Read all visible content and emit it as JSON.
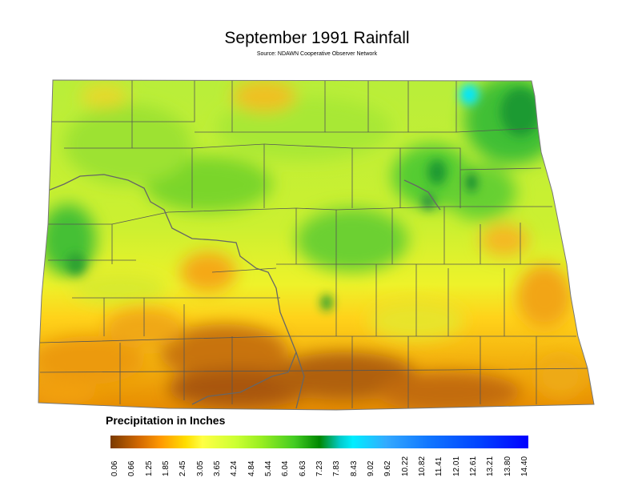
{
  "title": "September 1991 Rainfall",
  "subtitle": "Source: NDAWN Cooperative Observer Network",
  "legend": {
    "title": "Precipitation in Inches",
    "ticks": [
      "0.06",
      "0.66",
      "1.25",
      "1.85",
      "2.45",
      "3.05",
      "3.65",
      "4.24",
      "4.84",
      "5.44",
      "6.04",
      "6.63",
      "7.23",
      "7.83",
      "8.43",
      "9.02",
      "9.62",
      "10.22",
      "10.82",
      "11.41",
      "12.01",
      "12.61",
      "13.21",
      "13.80",
      "14.40"
    ],
    "colors": [
      "#7a3a00",
      "#d46a00",
      "#ff9900",
      "#ffdd00",
      "#ffff44",
      "#ccff33",
      "#99ee22",
      "#44cc22",
      "#008800",
      "#00cccc",
      "#00eeff",
      "#33aaff",
      "#1177ff",
      "#0044ff",
      "#0000ff"
    ]
  }
}
